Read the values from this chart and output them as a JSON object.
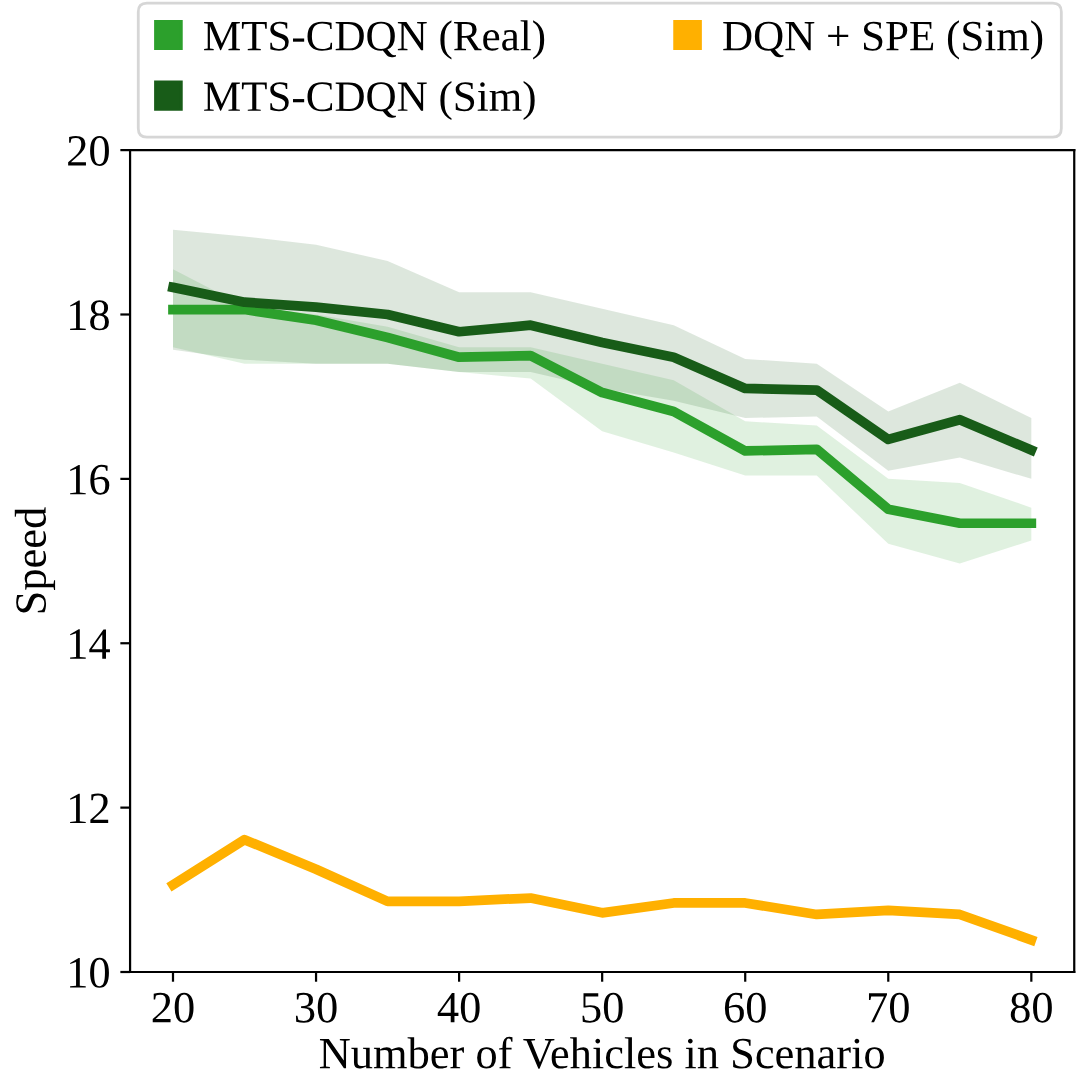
{
  "chart_data": {
    "type": "line",
    "xlabel": "Number of Vehicles in Scenario",
    "ylabel": "Speed",
    "x": [
      20,
      25,
      30,
      35,
      40,
      45,
      50,
      55,
      60,
      65,
      70,
      75,
      80
    ],
    "xlim": [
      17,
      83
    ],
    "xticks": [
      20,
      30,
      40,
      50,
      60,
      70,
      80
    ],
    "ylim": [
      10,
      20
    ],
    "yticks": [
      10,
      12,
      14,
      16,
      18,
      20
    ],
    "legend": "top",
    "grid": false,
    "line_style": "solid",
    "marker": "none",
    "series": [
      {
        "name": "MTS-CDQN (Real)",
        "color": "#2ca02c",
        "values": [
          18.06,
          18.06,
          17.93,
          17.72,
          17.48,
          17.5,
          17.05,
          16.82,
          16.34,
          16.36,
          15.63,
          15.46,
          15.46
        ],
        "lower": [
          17.6,
          17.4,
          17.4,
          17.4,
          17.3,
          17.22,
          16.58,
          16.32,
          16.04,
          16.04,
          15.21,
          14.97,
          15.25
        ],
        "upper": [
          18.55,
          18.1,
          18.0,
          17.85,
          17.6,
          17.6,
          17.4,
          17.2,
          16.7,
          16.65,
          16.0,
          15.95,
          15.65
        ]
      },
      {
        "name": "MTS-CDQN (Sim)",
        "color": "#185c18",
        "values": [
          18.33,
          18.15,
          18.09,
          18.0,
          17.79,
          17.87,
          17.66,
          17.48,
          17.1,
          17.08,
          16.48,
          16.72,
          16.35
        ],
        "lower": [
          17.57,
          17.45,
          17.4,
          17.4,
          17.3,
          17.3,
          17.1,
          16.95,
          16.74,
          16.76,
          16.1,
          16.26,
          16.0
        ],
        "upper": [
          19.03,
          18.95,
          18.85,
          18.65,
          18.27,
          18.27,
          18.07,
          17.87,
          17.46,
          17.4,
          16.82,
          17.17,
          16.74
        ]
      },
      {
        "name": "DQN + SPE (Sim)",
        "color": "#ffb000",
        "values": [
          11.06,
          11.61,
          11.25,
          10.86,
          10.86,
          10.9,
          10.72,
          10.84,
          10.84,
          10.7,
          10.75,
          10.7,
          10.39
        ]
      }
    ]
  }
}
